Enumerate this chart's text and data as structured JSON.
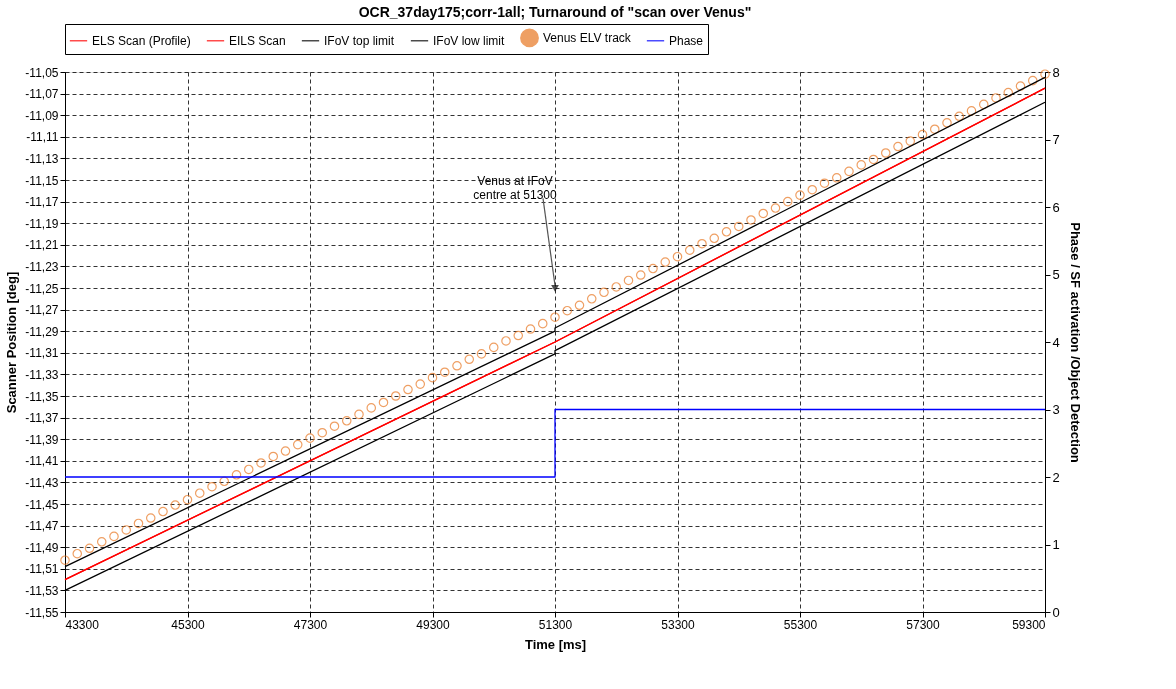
{
  "chart_data": {
    "type": "line",
    "title": "OCR_37day175;corr-1all; Turnaround of \"scan over Venus\"",
    "xlabel": "Time [ms]",
    "ylabel": "Scanner Position [deg]",
    "y2label": "Phase / SF activation /Object Detection",
    "xlim": [
      43300,
      59300
    ],
    "xticks": [
      43300,
      45300,
      47300,
      49300,
      51300,
      53300,
      55300,
      57300,
      59300
    ],
    "ylim": [
      -11.55,
      -11.05
    ],
    "yticks": [
      {
        "value": -11.55,
        "label": "-11,55"
      },
      {
        "value": -11.53,
        "label": "-11,53"
      },
      {
        "value": -11.51,
        "label": "-11,51"
      },
      {
        "value": -11.49,
        "label": "-11,49"
      },
      {
        "value": -11.47,
        "label": "-11,47"
      },
      {
        "value": -11.45,
        "label": "-11,45"
      },
      {
        "value": -11.43,
        "label": "-11,43"
      },
      {
        "value": -11.41,
        "label": "-11,41"
      },
      {
        "value": -11.39,
        "label": "-11,39"
      },
      {
        "value": -11.37,
        "label": "-11,37"
      },
      {
        "value": -11.35,
        "label": "-11,35"
      },
      {
        "value": -11.33,
        "label": "-11,33"
      },
      {
        "value": -11.31,
        "label": "-11,31"
      },
      {
        "value": -11.29,
        "label": "-11,29"
      },
      {
        "value": -11.27,
        "label": "-11,27"
      },
      {
        "value": -11.25,
        "label": "-11,25"
      },
      {
        "value": -11.23,
        "label": "-11,23"
      },
      {
        "value": -11.21,
        "label": "-11,21"
      },
      {
        "value": -11.19,
        "label": "-11,19"
      },
      {
        "value": -11.17,
        "label": "-11,17"
      },
      {
        "value": -11.15,
        "label": "-11,15"
      },
      {
        "value": -11.13,
        "label": "-11,13"
      },
      {
        "value": -11.11,
        "label": "-11,11"
      },
      {
        "value": -11.09,
        "label": "-11,09"
      },
      {
        "value": -11.07,
        "label": "-11,07"
      },
      {
        "value": -11.05,
        "label": "-11,05"
      }
    ],
    "y2lim": [
      0,
      8
    ],
    "y2ticks": [
      0,
      1,
      2,
      3,
      4,
      5,
      6,
      7,
      8
    ],
    "grid": true,
    "legend": "top",
    "annotations": [
      "Venus at IFoV\ncentre at 51300"
    ],
    "series": [
      {
        "name": "ELS Scan (Profile)",
        "color": "#ff0000",
        "x": [
          43300,
          51300,
          59300
        ],
        "values": [
          -11.52,
          -11.3,
          -11.065
        ]
      },
      {
        "name": "EILS Scan",
        "color": "#ff0000",
        "x": [
          43300,
          51300,
          59300
        ],
        "values": [
          -11.52,
          -11.3,
          -11.065
        ]
      },
      {
        "name": "IFoV top limit",
        "color": "#000000",
        "x": [
          43300,
          51300,
          51300,
          59300
        ],
        "values": [
          -11.508,
          -11.29,
          -11.287,
          -11.055
        ]
      },
      {
        "name": "IFoV low limit",
        "color": "#000000",
        "x": [
          43300,
          51300,
          51300,
          59300
        ],
        "values": [
          -11.53,
          -11.311,
          -11.308,
          -11.078
        ]
      },
      {
        "name": "Venus ELV track",
        "color": "#e87722",
        "type": "scatter",
        "marker": "circle",
        "x": [
          43300,
          43500,
          43700,
          43900,
          44100,
          44300,
          44500,
          44700,
          44900,
          45100,
          45300,
          45500,
          45700,
          45900,
          46100,
          46300,
          46500,
          46700,
          46900,
          47100,
          47300,
          47500,
          47700,
          47900,
          48100,
          48300,
          48500,
          48700,
          48900,
          49100,
          49300,
          49500,
          49700,
          49900,
          50100,
          50300,
          50500,
          50700,
          50900,
          51100,
          51300,
          51500,
          51700,
          51900,
          52100,
          52300,
          52500,
          52700,
          52900,
          53100,
          53300,
          53500,
          53700,
          53900,
          54100,
          54300,
          54500,
          54700,
          54900,
          55100,
          55300,
          55500,
          55700,
          55900,
          56100,
          56300,
          56500,
          56700,
          56900,
          57100,
          57300,
          57500,
          57700,
          57900,
          58100,
          58300,
          58500,
          58700,
          58900,
          59100,
          59300
        ],
        "values": [
          -11.502,
          -11.496,
          -11.491,
          -11.485,
          -11.48,
          -11.474,
          -11.468,
          -11.463,
          -11.457,
          -11.451,
          -11.446,
          -11.44,
          -11.434,
          -11.429,
          -11.423,
          -11.418,
          -11.412,
          -11.406,
          -11.401,
          -11.395,
          -11.389,
          -11.384,
          -11.378,
          -11.373,
          -11.367,
          -11.361,
          -11.356,
          -11.35,
          -11.344,
          -11.339,
          -11.333,
          -11.328,
          -11.322,
          -11.316,
          -11.311,
          -11.305,
          -11.299,
          -11.294,
          -11.288,
          -11.283,
          -11.277,
          -11.271,
          -11.266,
          -11.26,
          -11.254,
          -11.249,
          -11.243,
          -11.238,
          -11.232,
          -11.226,
          -11.221,
          -11.215,
          -11.209,
          -11.204,
          -11.198,
          -11.193,
          -11.187,
          -11.181,
          -11.176,
          -11.17,
          -11.164,
          -11.159,
          -11.153,
          -11.148,
          -11.142,
          -11.136,
          -11.131,
          -11.125,
          -11.119,
          -11.114,
          -11.108,
          -11.103,
          -11.097,
          -11.091,
          -11.086,
          -11.08,
          -11.074,
          -11.069,
          -11.063,
          -11.058,
          -11.052
        ]
      },
      {
        "name": "Phase",
        "color": "#0000ff",
        "type": "step",
        "axis": "y2",
        "x": [
          43300,
          51300,
          59300
        ],
        "values": [
          2,
          3,
          3
        ]
      }
    ]
  }
}
